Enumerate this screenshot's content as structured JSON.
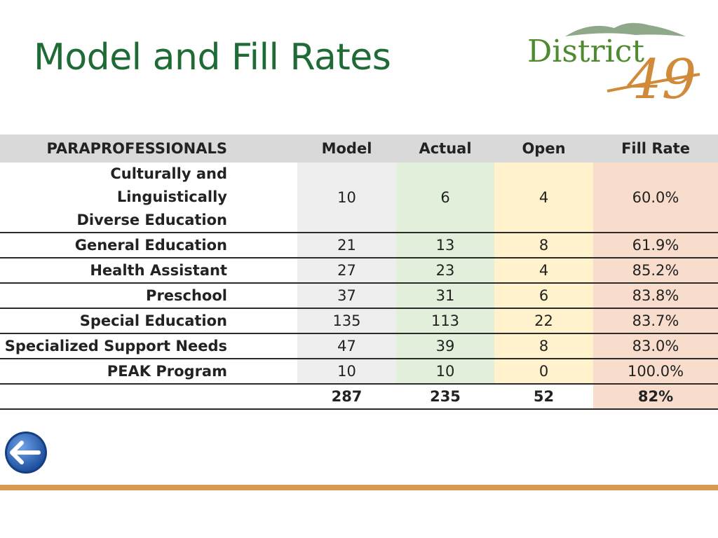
{
  "slide": {
    "title": "Model and Fill Rates"
  },
  "logo": {
    "text": "District",
    "number": "49",
    "colors": {
      "word": "#4e8a2e",
      "number": "#d08a3a",
      "mountain": "#8fa88a"
    }
  },
  "table": {
    "headers": {
      "label": "PARAPROFESSIONALS",
      "model": "Model",
      "actual": "Actual",
      "open": "Open",
      "fill_rate": "Fill Rate"
    },
    "rows": [
      {
        "label_line1": "Culturally and Linguistically",
        "label_line2": "Diverse Education",
        "model": "10",
        "actual": "6",
        "open": "4",
        "fill_rate": "60.0%"
      },
      {
        "label": "General Education",
        "model": "21",
        "actual": "13",
        "open": "8",
        "fill_rate": "61.9%"
      },
      {
        "label": "Health Assistant",
        "model": "27",
        "actual": "23",
        "open": "4",
        "fill_rate": "85.2%"
      },
      {
        "label": "Preschool",
        "model": "37",
        "actual": "31",
        "open": "6",
        "fill_rate": "83.8%"
      },
      {
        "label": "Special Education",
        "model": "135",
        "actual": "113",
        "open": "22",
        "fill_rate": "83.7%"
      },
      {
        "label": "Specialized Support Needs",
        "model": "47",
        "actual": "39",
        "open": "8",
        "fill_rate": "83.0%"
      },
      {
        "label": "PEAK Program",
        "model": "10",
        "actual": "10",
        "open": "0",
        "fill_rate": "100.0%"
      }
    ],
    "total": {
      "label": "",
      "model": "287",
      "actual": "235",
      "open": "52",
      "fill_rate": "82%"
    },
    "colors": {
      "header_bg": "#d9d9d9",
      "model_bg": "#eeeeee",
      "actual_bg": "#e2efda",
      "open_bg": "#fff2cc",
      "fill_bg": "#f8dccc"
    }
  },
  "navigation": {
    "back_icon": "arrow-left-icon"
  },
  "footer": {
    "bar_color": "#d89a4e"
  }
}
